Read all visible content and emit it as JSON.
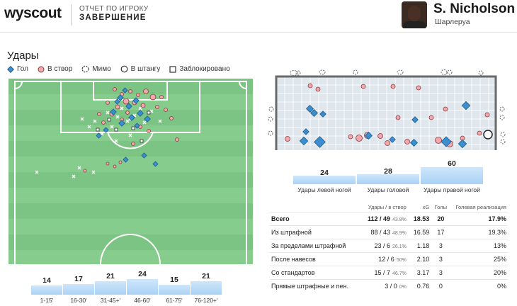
{
  "header": {
    "logo": "wyscout",
    "report_title": "ОТЧЕТ ПО ИГРОКУ",
    "position": "ЗАВЕРШЕНИЕ",
    "player_name": "S. Nicholson",
    "club": "Шарлеруа"
  },
  "section_title": "Удары",
  "legend": {
    "goal": "Гол",
    "on_target": "В створ",
    "miss": "Мимо",
    "post": "В штангу",
    "blocked": "Заблокировано"
  },
  "colors": {
    "goal": "#3b8fd0",
    "on_target": "#f0a8ad",
    "pitch": "#7cc483",
    "pitch_stripe": "#86cc8c",
    "bar": "#b8dbf7"
  },
  "foot_bars": [
    {
      "value": 24,
      "label": "Удары левой ногой"
    },
    {
      "value": 28,
      "label": "Удары головой"
    },
    {
      "value": 60,
      "label": "Удары правой ногой"
    }
  ],
  "time_bars": [
    {
      "value": 14,
      "label": "1-15'"
    },
    {
      "value": 17,
      "label": "16-30'"
    },
    {
      "value": 21,
      "label": "31-45+'"
    },
    {
      "value": 24,
      "label": "46-60'"
    },
    {
      "value": 15,
      "label": "61-75'"
    },
    {
      "value": 21,
      "label": "76-120+'"
    }
  ],
  "table": {
    "headers": [
      "",
      "Удары / в створ",
      "xG",
      "Голы",
      "Голевая реализация"
    ],
    "rows": [
      {
        "label": "Всего",
        "shots": "112 / 49",
        "pct": "43.8%",
        "xg": "18.53",
        "goals": "20",
        "conv": "17.9%"
      },
      {
        "label": "Из штрафной",
        "shots": "88 / 43",
        "pct": "48.9%",
        "xg": "16.59",
        "goals": "17",
        "conv": "19.3%"
      },
      {
        "label": "За пределами штрафной",
        "shots": "23 / 6",
        "pct": "26.1%",
        "xg": "1.18",
        "goals": "3",
        "conv": "13%"
      },
      {
        "label": "После навесов",
        "shots": "12 / 6",
        "pct": "50%",
        "xg": "2.10",
        "goals": "3",
        "conv": "25%"
      },
      {
        "label": "Со стандартов",
        "shots": "15 / 7",
        "pct": "46.7%",
        "xg": "3.17",
        "goals": "3",
        "conv": "20%"
      },
      {
        "label": "Прямые штрафные и пен.",
        "shots": "3 / 0",
        "pct": "0%",
        "xg": "0.76",
        "goals": "0",
        "conv": "0%"
      }
    ]
  }
}
